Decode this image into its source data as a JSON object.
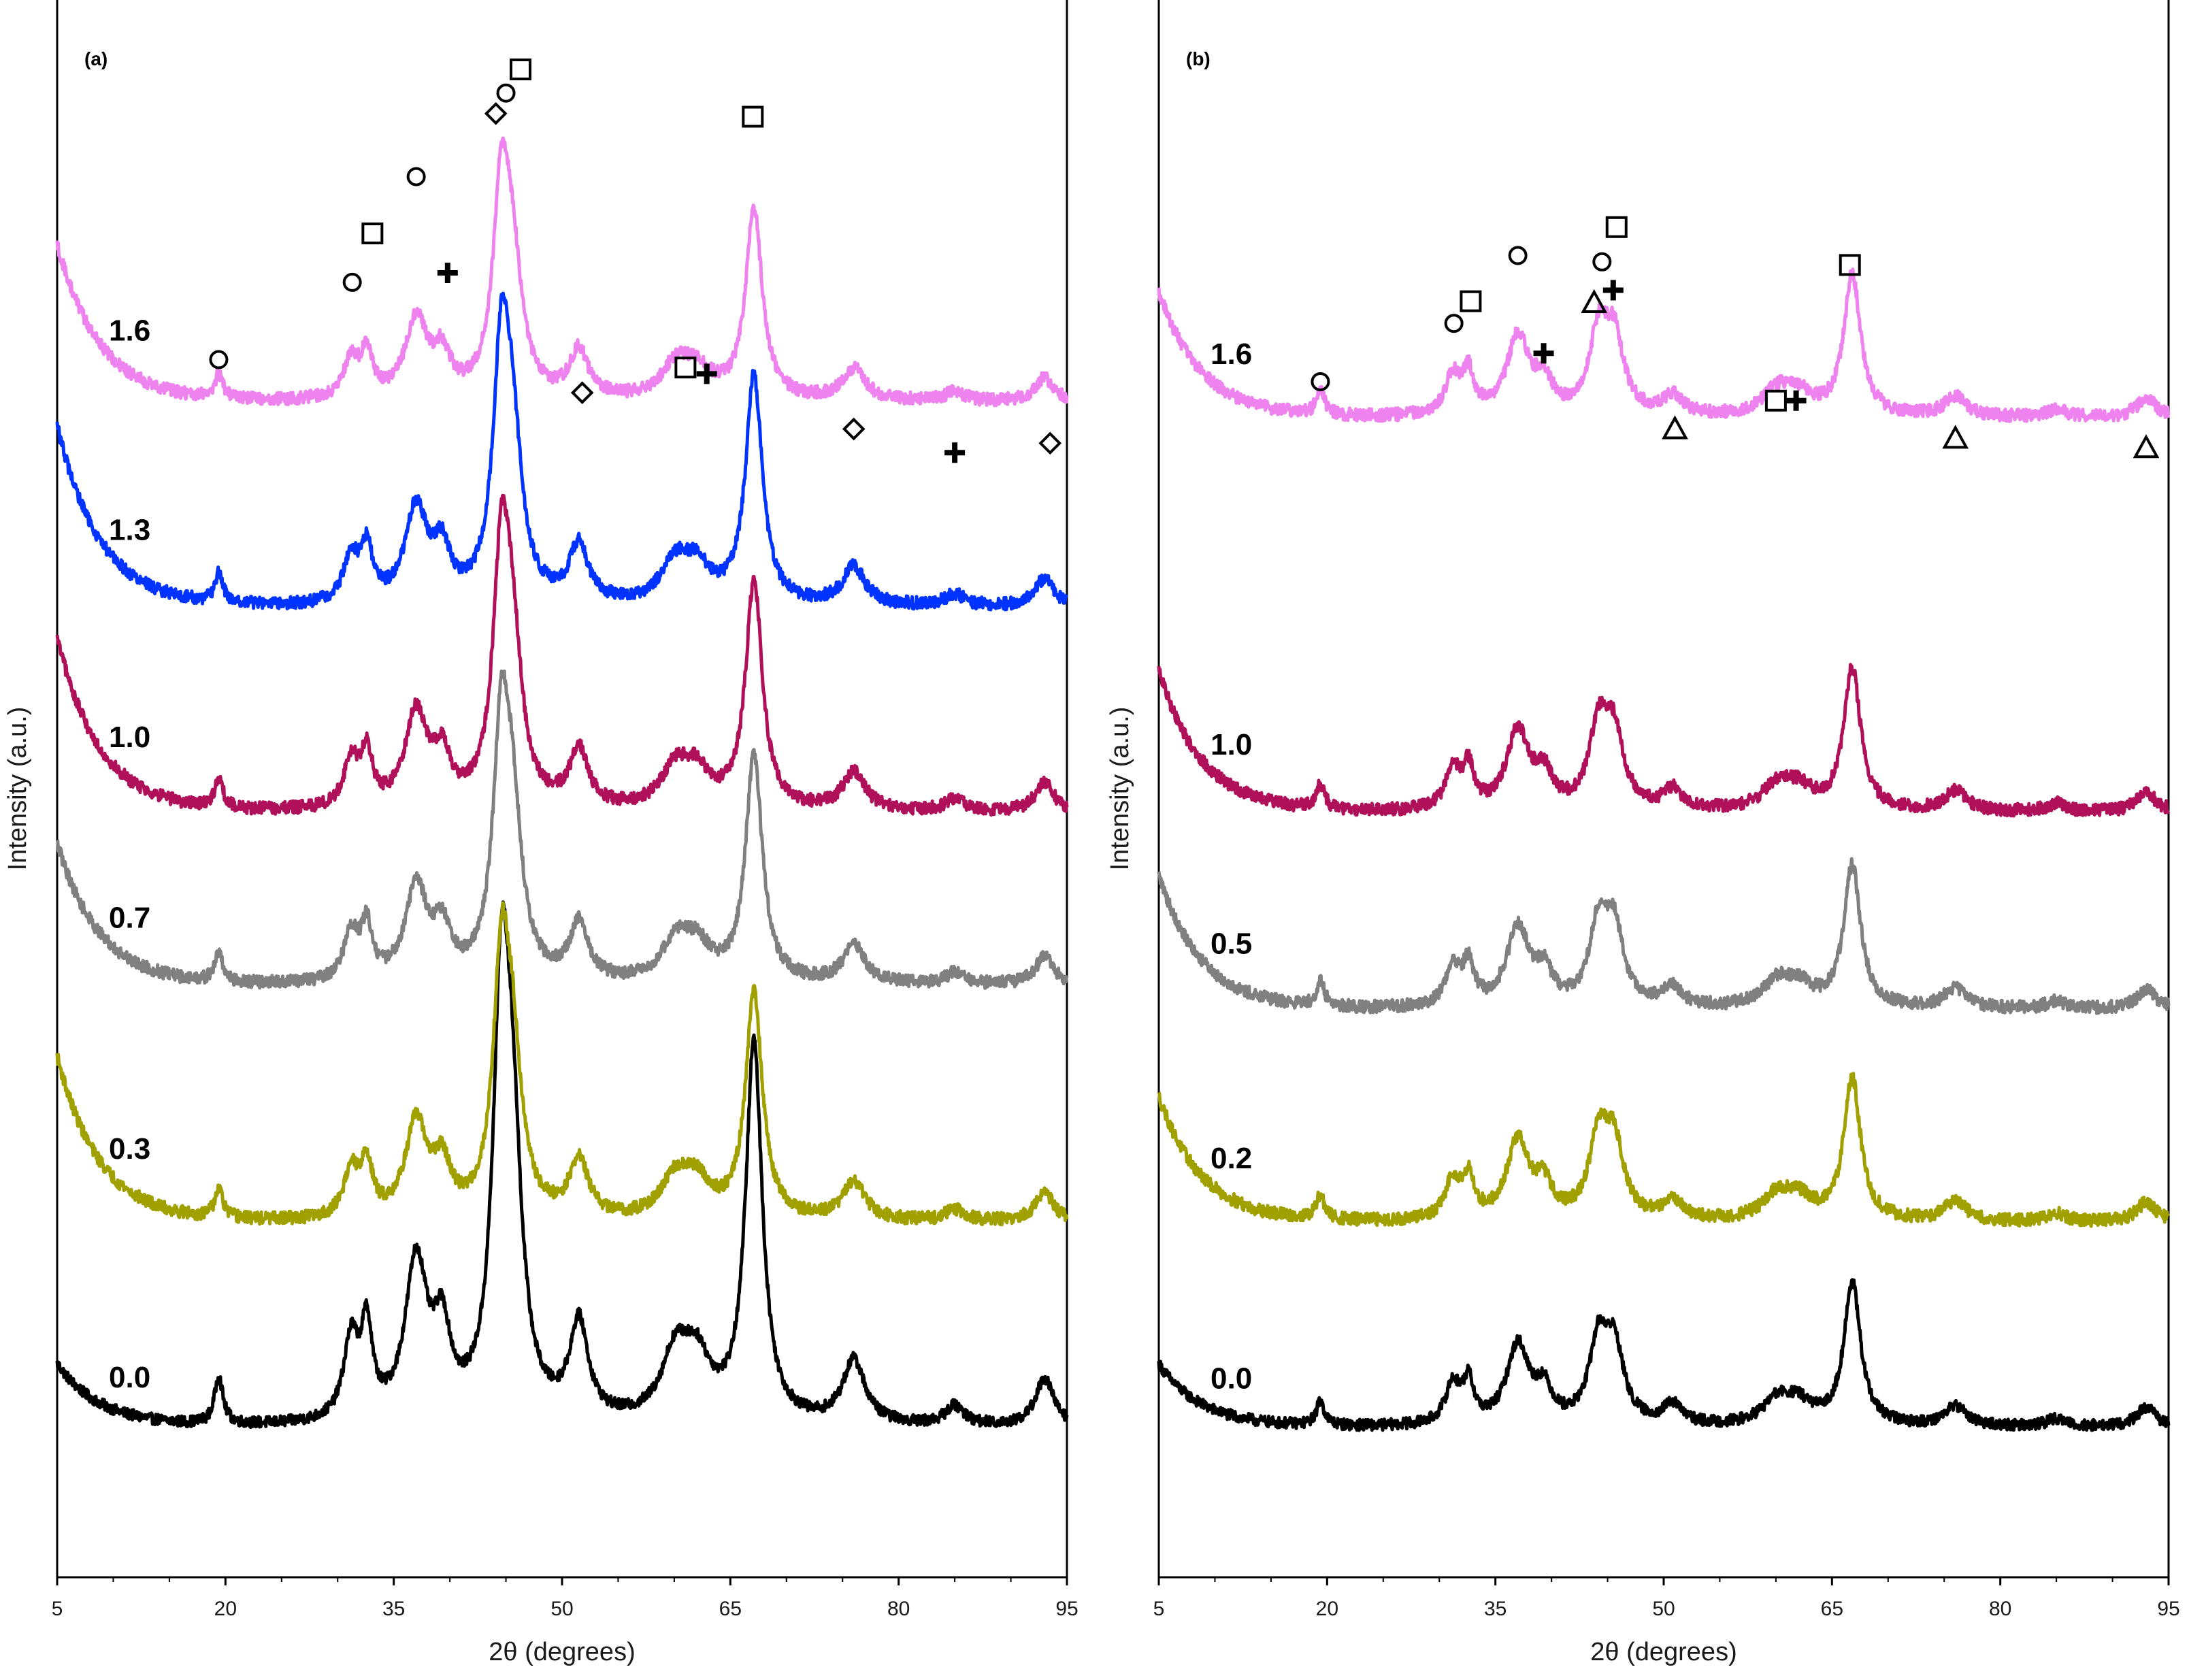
{
  "chart_data": [
    {
      "type": "line",
      "panel_label": "(a)",
      "xlabel": "2θ (degrees)",
      "ylabel": "Intensity (a.u.)",
      "xlim": [
        5,
        95
      ],
      "xticks": [
        5,
        20,
        35,
        50,
        65,
        80,
        95
      ],
      "ylim": [
        0,
        100
      ],
      "legend": "none",
      "grid": false,
      "series": [
        {
          "name": "0.0",
          "color": "#000000",
          "offset": 7.0,
          "start": 13.5,
          "bg": 2.5,
          "amp": 1.0,
          "noise": 0.35
        },
        {
          "name": "0.3",
          "color": "#a0a000",
          "offset": 19.5,
          "start": 33.0,
          "bg": 3.0,
          "amp": 0.6,
          "noise": 0.4
        },
        {
          "name": "0.7",
          "color": "#808080",
          "offset": 34.5,
          "start": 46.5,
          "bg": 3.0,
          "amp": 0.6,
          "noise": 0.4
        },
        {
          "name": "1.0",
          "color": "#b0105a",
          "offset": 45.5,
          "start": 59.5,
          "bg": 3.0,
          "amp": 0.6,
          "noise": 0.4
        },
        {
          "name": "1.3",
          "color": "#0033ff",
          "offset": 58.5,
          "start": 73.0,
          "bg": 3.0,
          "amp": 0.6,
          "noise": 0.4
        },
        {
          "name": "1.6",
          "color": "#ee82ee",
          "offset": 71.5,
          "start": 84.5,
          "bg": 3.0,
          "amp": 0.5,
          "noise": 0.4
        }
      ],
      "peaks": [
        {
          "pos": 19.4,
          "h": 3.0,
          "w": 0.45
        },
        {
          "pos": 31.2,
          "h": 5.0,
          "w": 0.8
        },
        {
          "pos": 32.6,
          "h": 5.5,
          "w": 0.6
        },
        {
          "pos": 37.0,
          "h": 10.0,
          "w": 1.2
        },
        {
          "pos": 39.3,
          "h": 5.0,
          "w": 0.9
        },
        {
          "pos": 44.6,
          "h": 25.0,
          "w": 0.9
        },
        {
          "pos": 45.6,
          "h": 14.0,
          "w": 1.0
        },
        {
          "pos": 51.5,
          "h": 6.0,
          "w": 1.0
        },
        {
          "pos": 60.1,
          "h": 4.0,
          "w": 1.5
        },
        {
          "pos": 62.0,
          "h": 3.5,
          "w": 1.5
        },
        {
          "pos": 67.1,
          "h": 24.0,
          "w": 0.9
        },
        {
          "pos": 76.0,
          "h": 4.0,
          "w": 1.2
        },
        {
          "pos": 85.0,
          "h": 1.2,
          "w": 1.0
        },
        {
          "pos": 93.0,
          "h": 3.0,
          "w": 1.0
        }
      ],
      "markers": [
        {
          "shape": "circle",
          "x": 19.4,
          "y": 77.2
        },
        {
          "shape": "circle",
          "x": 31.3,
          "y": 82.1
        },
        {
          "shape": "square",
          "x": 33.1,
          "y": 85.2
        },
        {
          "shape": "circle",
          "x": 37.0,
          "y": 88.8
        },
        {
          "shape": "plus",
          "x": 39.8,
          "y": 82.7
        },
        {
          "shape": "diamond",
          "x": 44.1,
          "y": 92.8
        },
        {
          "shape": "circle",
          "x": 45.0,
          "y": 94.1
        },
        {
          "shape": "square",
          "x": 46.3,
          "y": 95.6
        },
        {
          "shape": "diamond",
          "x": 51.8,
          "y": 75.1
        },
        {
          "shape": "square",
          "x": 61.0,
          "y": 76.7
        },
        {
          "shape": "plus",
          "x": 62.9,
          "y": 76.3
        },
        {
          "shape": "square",
          "x": 67.0,
          "y": 92.6
        },
        {
          "shape": "diamond",
          "x": 76.0,
          "y": 72.8
        },
        {
          "shape": "plus",
          "x": 85.0,
          "y": 71.3
        },
        {
          "shape": "diamond",
          "x": 93.5,
          "y": 71.9
        }
      ]
    },
    {
      "type": "line",
      "panel_label": "(b)",
      "xlabel": "2θ (degrees)",
      "ylabel": "Intensity (a.u.)",
      "xlim": [
        5,
        95
      ],
      "xticks": [
        5,
        20,
        35,
        50,
        65,
        80,
        95
      ],
      "ylim": [
        0,
        100
      ],
      "legend": "none",
      "grid": false,
      "series": [
        {
          "name": "0.0",
          "color": "#000000",
          "offset": 7.0,
          "start": 13.5,
          "bg": 2.5,
          "amp": 0.5,
          "noise": 0.35
        },
        {
          "name": "0.2",
          "color": "#a0a000",
          "offset": 19.5,
          "start": 30.5,
          "bg": 3.0,
          "amp": 0.5,
          "noise": 0.4
        },
        {
          "name": "0.5",
          "color": "#808080",
          "offset": 33.0,
          "start": 44.5,
          "bg": 3.0,
          "amp": 0.5,
          "noise": 0.4
        },
        {
          "name": "1.0",
          "color": "#b0105a",
          "offset": 45.5,
          "start": 57.5,
          "bg": 3.0,
          "amp": 0.5,
          "noise": 0.4
        },
        {
          "name": "1.6",
          "color": "#ee82ee",
          "offset": 70.5,
          "start": 81.5,
          "bg": 3.0,
          "amp": 0.5,
          "noise": 0.4
        }
      ],
      "peaks": [
        {
          "pos": 19.4,
          "h": 3.0,
          "w": 0.45
        },
        {
          "pos": 31.2,
          "h": 5.0,
          "w": 0.8
        },
        {
          "pos": 32.6,
          "h": 5.0,
          "w": 0.6
        },
        {
          "pos": 37.0,
          "h": 10.0,
          "w": 1.2
        },
        {
          "pos": 39.3,
          "h": 4.0,
          "w": 0.9
        },
        {
          "pos": 44.2,
          "h": 10.0,
          "w": 1.0
        },
        {
          "pos": 45.6,
          "h": 9.0,
          "w": 1.0
        },
        {
          "pos": 50.8,
          "h": 2.5,
          "w": 1.0
        },
        {
          "pos": 60.1,
          "h": 3.0,
          "w": 1.5
        },
        {
          "pos": 62.0,
          "h": 2.5,
          "w": 1.5
        },
        {
          "pos": 66.8,
          "h": 18.0,
          "w": 0.9
        },
        {
          "pos": 76.0,
          "h": 2.5,
          "w": 1.2
        },
        {
          "pos": 85.0,
          "h": 1.0,
          "w": 1.0
        },
        {
          "pos": 93.0,
          "h": 2.5,
          "w": 1.0
        }
      ],
      "markers": [
        {
          "shape": "circle",
          "x": 19.4,
          "y": 75.8
        },
        {
          "shape": "circle",
          "x": 31.3,
          "y": 79.5
        },
        {
          "shape": "square",
          "x": 32.8,
          "y": 80.9
        },
        {
          "shape": "circle",
          "x": 37.0,
          "y": 83.8
        },
        {
          "shape": "plus",
          "x": 39.3,
          "y": 77.6
        },
        {
          "shape": "triangle",
          "x": 43.8,
          "y": 80.8
        },
        {
          "shape": "circle",
          "x": 44.5,
          "y": 83.4
        },
        {
          "shape": "plus",
          "x": 45.5,
          "y": 81.6
        },
        {
          "shape": "square",
          "x": 45.8,
          "y": 85.6
        },
        {
          "shape": "triangle",
          "x": 51.0,
          "y": 72.8
        },
        {
          "shape": "square",
          "x": 60.0,
          "y": 74.6
        },
        {
          "shape": "plus",
          "x": 61.8,
          "y": 74.6
        },
        {
          "shape": "square",
          "x": 66.6,
          "y": 83.2
        },
        {
          "shape": "triangle",
          "x": 76.0,
          "y": 72.2
        },
        {
          "shape": "triangle",
          "x": 93.0,
          "y": 71.6
        }
      ]
    }
  ]
}
